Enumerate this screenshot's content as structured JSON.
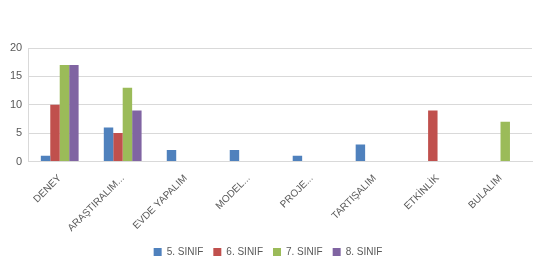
{
  "chart_data": {
    "type": "bar",
    "categories": [
      "DENEY",
      "ARAŞTIRALIM...",
      "EVDE YAPALIM",
      "MODEL...",
      "PROJE...",
      "TARTIŞALIM",
      "ETKİNLİK",
      "BULALIM"
    ],
    "series": [
      {
        "name": "5. SINIF",
        "color": "#4f81bd",
        "values": [
          1,
          6,
          2,
          2,
          1,
          3,
          0,
          0
        ]
      },
      {
        "name": "6. SINIF",
        "color": "#c0504d",
        "values": [
          10,
          5,
          0,
          0,
          0,
          0,
          9,
          0
        ]
      },
      {
        "name": "7. SINIF",
        "color": "#9bbb59",
        "values": [
          17,
          13,
          0,
          0,
          0,
          0,
          0,
          7
        ]
      },
      {
        "name": "8. SINIF",
        "color": "#8064a2",
        "values": [
          17,
          9,
          0,
          0,
          0,
          0,
          0,
          0
        ]
      }
    ],
    "ylim": [
      0,
      20
    ],
    "yticks": [
      0,
      5,
      10,
      15,
      20
    ],
    "grid": true,
    "legend": "bottom"
  }
}
